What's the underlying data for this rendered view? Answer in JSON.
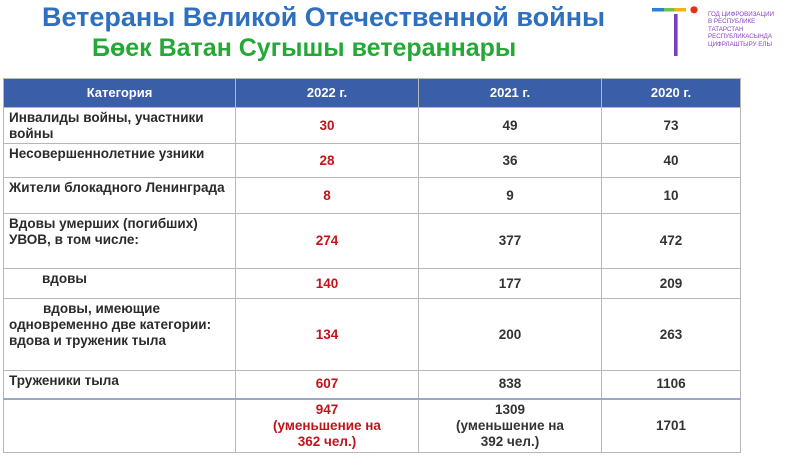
{
  "header": {
    "title_ru": "Ветераны Великой Отечественной войны",
    "title_tt": "Бөек Ватан Сугышы ветераннары"
  },
  "logo": {
    "lines": [
      "ГОД ЦИФРОВИЗАЦИИ",
      "В РЕСПУБЛИКЕ",
      "ТАТАРСТАН",
      "РЕСПУБЛИКАСЫНДА",
      "ЦИФРЛАШТЫРУ ЕЛЫ"
    ],
    "colors": [
      "#2e7fd6",
      "#6cc24a",
      "#f0b020",
      "#e2331a",
      "#7a3cc0"
    ]
  },
  "table": {
    "headers": [
      "Категория",
      "2022 г.",
      "2021 г.",
      "2020 г."
    ],
    "rows": [
      {
        "category": "Инвалиды войны, участники войны",
        "y2022": "30",
        "y2021": "49",
        "y2020": "73"
      },
      {
        "category": "Несовершеннолетние узники",
        "y2022": "28",
        "y2021": "36",
        "y2020": "40"
      },
      {
        "category": "Жители блокадного Ленинграда",
        "y2022": "8",
        "y2021": "9",
        "y2020": "10"
      },
      {
        "category": "Вдовы умерших (погибших) УВОВ, в том числе:",
        "y2022": "274",
        "y2021": "377",
        "y2020": "472"
      },
      {
        "category": "вдовы",
        "y2022": "140",
        "y2021": "177",
        "y2020": "209"
      },
      {
        "category": "вдовы, имеющие одновременно две категории: вдова и труженик тыла",
        "y2022": "134",
        "y2021": "200",
        "y2020": "263"
      },
      {
        "category": "Труженики тыла",
        "y2022": "607",
        "y2021": "838",
        "y2020": "1106"
      },
      {
        "category": "",
        "y2022": "947 (уменьшение на 362 чел.)",
        "y2021": "1309 (уменьшение на 392 чел.)",
        "y2020": "1701"
      }
    ]
  }
}
